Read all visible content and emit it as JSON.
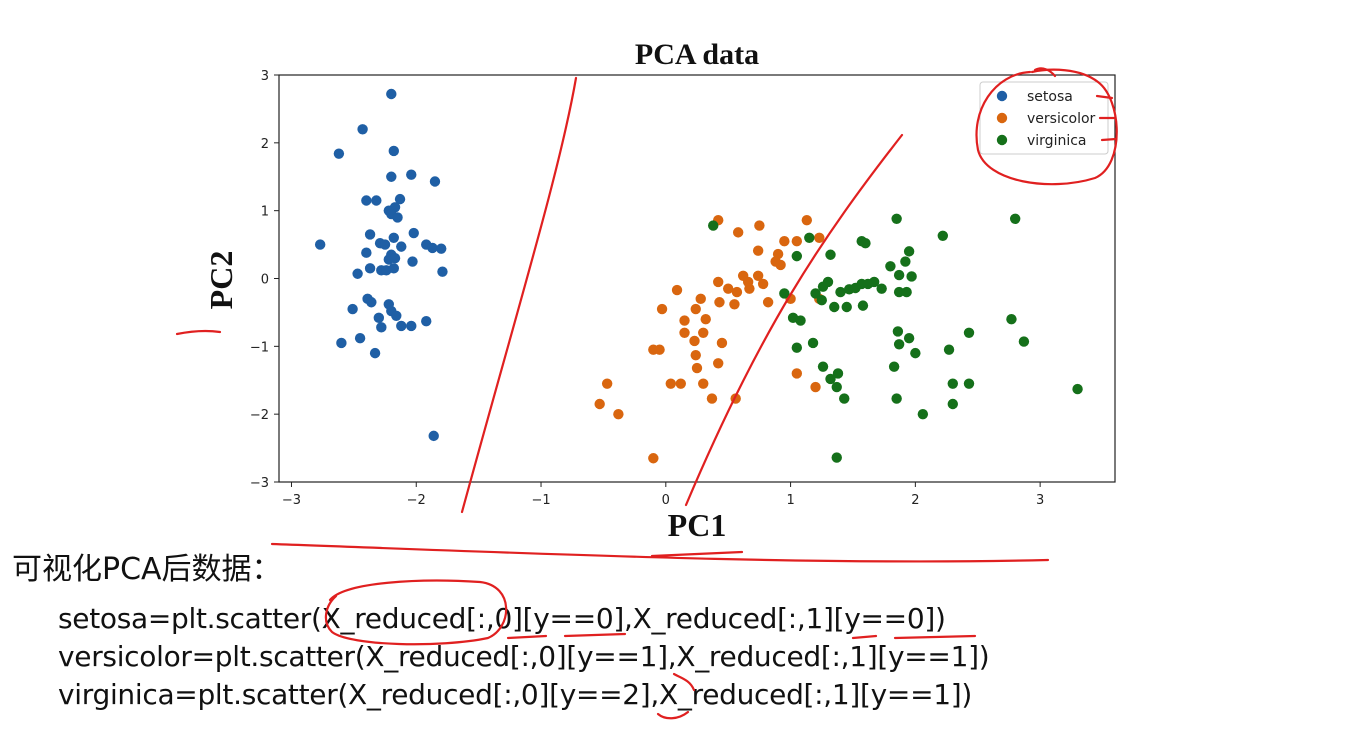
{
  "caption": "可视化PCA后数据：",
  "code_lines": [
    "setosa=plt.scatter(X_reduced[:,0][y==0],X_reduced[:,1][y==0])",
    "versicolor=plt.scatter(X_reduced[:,0][y==1],X_reduced[:,1][y==1])",
    "virginica=plt.scatter(X_reduced[:,0][y==2],X_reduced[:,1][y==1])"
  ],
  "colors": {
    "annotation": "#e02020",
    "axes": "#222222"
  },
  "chart_data": {
    "type": "scatter",
    "title": "PCA data",
    "xlabel": "PC1",
    "ylabel": "PC2",
    "xlim": [
      -3.1,
      3.6
    ],
    "ylim": [
      -3,
      3
    ],
    "xticks": [
      -3,
      -2,
      -1,
      0,
      1,
      2,
      3
    ],
    "yticks": [
      -3,
      -2,
      -1,
      0,
      1,
      2,
      3
    ],
    "xtick_labels": [
      "−3",
      "−2",
      "−1",
      "0",
      "1",
      "2",
      "3"
    ],
    "ytick_labels": [
      "−3",
      "−2",
      "−1",
      "0",
      "1",
      "2",
      "3"
    ],
    "grid": false,
    "legend_position": "top-right",
    "series": [
      {
        "name": "setosa",
        "color": "#1f5fa5",
        "points": [
          [
            -2.2,
            2.72
          ],
          [
            -2.43,
            2.2
          ],
          [
            -2.62,
            1.84
          ],
          [
            -2.18,
            1.88
          ],
          [
            -2.2,
            1.5
          ],
          [
            -2.04,
            1.53
          ],
          [
            -1.85,
            1.43
          ],
          [
            -2.4,
            1.15
          ],
          [
            -2.32,
            1.15
          ],
          [
            -2.13,
            1.17
          ],
          [
            -2.17,
            1.05
          ],
          [
            -2.22,
            1.0
          ],
          [
            -2.2,
            0.95
          ],
          [
            -2.15,
            0.9
          ],
          [
            -2.02,
            0.67
          ],
          [
            -2.37,
            0.65
          ],
          [
            -2.18,
            0.6
          ],
          [
            -2.77,
            0.5
          ],
          [
            -2.29,
            0.52
          ],
          [
            -2.25,
            0.5
          ],
          [
            -2.12,
            0.47
          ],
          [
            -1.92,
            0.5
          ],
          [
            -1.87,
            0.45
          ],
          [
            -1.8,
            0.44
          ],
          [
            -2.4,
            0.38
          ],
          [
            -2.2,
            0.35
          ],
          [
            -2.22,
            0.28
          ],
          [
            -2.17,
            0.3
          ],
          [
            -2.03,
            0.25
          ],
          [
            -2.37,
            0.15
          ],
          [
            -2.28,
            0.12
          ],
          [
            -2.24,
            0.12
          ],
          [
            -2.47,
            0.07
          ],
          [
            -1.79,
            0.1
          ],
          [
            -2.18,
            0.15
          ],
          [
            -2.39,
            -0.3
          ],
          [
            -2.36,
            -0.35
          ],
          [
            -2.51,
            -0.45
          ],
          [
            -2.22,
            -0.38
          ],
          [
            -2.2,
            -0.48
          ],
          [
            -2.16,
            -0.55
          ],
          [
            -2.3,
            -0.58
          ],
          [
            -2.12,
            -0.7
          ],
          [
            -2.04,
            -0.7
          ],
          [
            -1.92,
            -0.63
          ],
          [
            -2.28,
            -0.72
          ],
          [
            -2.45,
            -0.88
          ],
          [
            -2.6,
            -0.95
          ],
          [
            -2.33,
            -1.1
          ],
          [
            -1.86,
            -2.32
          ]
        ]
      },
      {
        "name": "versicolor",
        "color": "#d9660f",
        "points": [
          [
            0.42,
            0.86
          ],
          [
            1.13,
            0.86
          ],
          [
            0.75,
            0.78
          ],
          [
            0.58,
            0.68
          ],
          [
            0.95,
            0.55
          ],
          [
            1.05,
            0.55
          ],
          [
            1.23,
            0.6
          ],
          [
            0.74,
            0.41
          ],
          [
            0.9,
            0.36
          ],
          [
            0.88,
            0.25
          ],
          [
            0.92,
            0.2
          ],
          [
            0.62,
            0.04
          ],
          [
            0.74,
            0.04
          ],
          [
            0.66,
            -0.05
          ],
          [
            0.42,
            -0.05
          ],
          [
            0.78,
            -0.08
          ],
          [
            0.5,
            -0.15
          ],
          [
            0.67,
            -0.15
          ],
          [
            0.57,
            -0.2
          ],
          [
            0.09,
            -0.17
          ],
          [
            0.28,
            -0.3
          ],
          [
            0.43,
            -0.35
          ],
          [
            0.24,
            -0.45
          ],
          [
            -0.03,
            -0.45
          ],
          [
            0.82,
            -0.35
          ],
          [
            0.55,
            -0.38
          ],
          [
            1.0,
            -0.3
          ],
          [
            1.23,
            -0.3
          ],
          [
            0.32,
            -0.6
          ],
          [
            0.15,
            -0.62
          ],
          [
            0.3,
            -0.8
          ],
          [
            0.15,
            -0.8
          ],
          [
            0.45,
            -0.95
          ],
          [
            -0.1,
            -1.05
          ],
          [
            -0.05,
            -1.05
          ],
          [
            0.23,
            -0.92
          ],
          [
            0.24,
            -1.13
          ],
          [
            0.42,
            -1.25
          ],
          [
            0.25,
            -1.32
          ],
          [
            0.04,
            -1.55
          ],
          [
            0.12,
            -1.55
          ],
          [
            0.3,
            -1.55
          ],
          [
            1.05,
            -1.4
          ],
          [
            1.2,
            -1.6
          ],
          [
            0.37,
            -1.77
          ],
          [
            0.56,
            -1.77
          ],
          [
            -0.47,
            -1.55
          ],
          [
            -0.53,
            -1.85
          ],
          [
            -0.38,
            -2.0
          ],
          [
            -0.1,
            -2.65
          ]
        ]
      },
      {
        "name": "virginica",
        "color": "#15701a",
        "points": [
          [
            0.38,
            0.78
          ],
          [
            1.85,
            0.88
          ],
          [
            2.8,
            0.88
          ],
          [
            1.15,
            0.6
          ],
          [
            1.57,
            0.55
          ],
          [
            1.6,
            0.52
          ],
          [
            2.22,
            0.63
          ],
          [
            1.95,
            0.4
          ],
          [
            1.05,
            0.33
          ],
          [
            1.32,
            0.35
          ],
          [
            1.92,
            0.25
          ],
          [
            1.8,
            0.18
          ],
          [
            1.87,
            0.05
          ],
          [
            1.97,
            0.03
          ],
          [
            1.3,
            -0.05
          ],
          [
            1.26,
            -0.12
          ],
          [
            1.4,
            -0.2
          ],
          [
            1.47,
            -0.16
          ],
          [
            1.52,
            -0.14
          ],
          [
            1.57,
            -0.08
          ],
          [
            1.67,
            -0.05
          ],
          [
            1.62,
            -0.08
          ],
          [
            1.73,
            -0.15
          ],
          [
            1.87,
            -0.2
          ],
          [
            1.93,
            -0.2
          ],
          [
            0.95,
            -0.22
          ],
          [
            1.2,
            -0.22
          ],
          [
            1.25,
            -0.32
          ],
          [
            1.35,
            -0.42
          ],
          [
            1.45,
            -0.42
          ],
          [
            1.58,
            -0.4
          ],
          [
            1.02,
            -0.58
          ],
          [
            1.08,
            -0.62
          ],
          [
            1.86,
            -0.78
          ],
          [
            2.77,
            -0.6
          ],
          [
            1.18,
            -0.95
          ],
          [
            1.05,
            -1.02
          ],
          [
            1.95,
            -0.88
          ],
          [
            2.43,
            -0.8
          ],
          [
            1.87,
            -0.97
          ],
          [
            2.87,
            -0.93
          ],
          [
            2.0,
            -1.1
          ],
          [
            2.27,
            -1.05
          ],
          [
            1.26,
            -1.3
          ],
          [
            1.38,
            -1.4
          ],
          [
            1.32,
            -1.48
          ],
          [
            1.37,
            -1.6
          ],
          [
            1.43,
            -1.77
          ],
          [
            1.85,
            -1.77
          ],
          [
            2.3,
            -1.55
          ],
          [
            2.43,
            -1.55
          ],
          [
            2.3,
            -1.85
          ],
          [
            2.06,
            -2.0
          ],
          [
            3.3,
            -1.63
          ],
          [
            1.37,
            -2.64
          ],
          [
            1.83,
            -1.3
          ]
        ]
      }
    ]
  }
}
